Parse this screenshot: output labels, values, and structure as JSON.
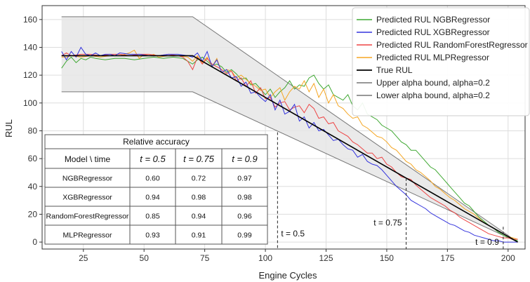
{
  "chart_data": {
    "type": "line",
    "xlabel": "Engine Cycles",
    "ylabel": "RUL",
    "xlim": [
      8,
      207
    ],
    "ylim": [
      -5,
      170
    ],
    "xticks": [
      25,
      50,
      75,
      100,
      125,
      150,
      175,
      200
    ],
    "yticks": [
      0,
      20,
      40,
      60,
      80,
      100,
      120,
      140,
      160
    ],
    "grid": true,
    "legend_position": "top-right",
    "series": [
      {
        "name": "Predicted RUL NGBRegressor",
        "color": "#3fa832",
        "x": [
          16,
          18,
          20,
          22,
          24,
          26,
          28,
          30,
          34,
          38,
          42,
          46,
          50,
          54,
          58,
          62,
          66,
          68,
          70,
          72,
          74,
          76,
          78,
          80,
          82,
          84,
          86,
          88,
          90,
          92,
          94,
          96,
          98,
          100,
          102,
          104,
          106,
          108,
          110,
          112,
          114,
          116,
          118,
          120,
          122,
          124,
          126,
          128,
          130,
          132,
          134,
          136,
          138,
          140,
          142,
          144,
          146,
          148,
          150,
          152,
          154,
          156,
          158,
          160,
          162,
          164,
          166,
          168,
          170,
          172,
          174,
          176,
          178,
          180,
          182,
          184,
          186,
          188,
          190,
          192,
          194,
          196,
          198,
          200,
          202,
          204
        ],
        "y": [
          125,
          130,
          133,
          129,
          132,
          131,
          133,
          132,
          131,
          132,
          132,
          131,
          132,
          133,
          132,
          133,
          132,
          130,
          128,
          131,
          133,
          130,
          127,
          128,
          126,
          122,
          124,
          121,
          117,
          118,
          113,
          114,
          110,
          106,
          110,
          104,
          108,
          111,
          116,
          110,
          113,
          112,
          118,
          120,
          114,
          110,
          113,
          106,
          104,
          102,
          106,
          98,
          95,
          100,
          92,
          90,
          88,
          84,
          82,
          80,
          76,
          72,
          70,
          66,
          66,
          62,
          58,
          54,
          52,
          48,
          44,
          40,
          36,
          32,
          28,
          26,
          22,
          18,
          15,
          12,
          10,
          7,
          5,
          3,
          2,
          1
        ]
      },
      {
        "name": "Predicted RUL XGBRegressor",
        "color": "#3333dd",
        "x": [
          16,
          18,
          20,
          22,
          24,
          26,
          28,
          30,
          32,
          34,
          36,
          38,
          40,
          44,
          48,
          52,
          56,
          60,
          64,
          68,
          70,
          72,
          74,
          76,
          78,
          80,
          82,
          84,
          86,
          88,
          90,
          92,
          94,
          96,
          98,
          100,
          102,
          104,
          106,
          108,
          110,
          112,
          114,
          116,
          118,
          120,
          122,
          124,
          126,
          128,
          130,
          132,
          134,
          136,
          138,
          140,
          142,
          144,
          146,
          148,
          150,
          152,
          154,
          156,
          158,
          160,
          162,
          164,
          166,
          168,
          170,
          172,
          174,
          176,
          178,
          180,
          182,
          184,
          186,
          188,
          190,
          192,
          194,
          196,
          198,
          200,
          202,
          204
        ],
        "y": [
          137,
          131,
          137,
          133,
          140,
          135,
          134,
          136,
          134,
          135,
          135,
          134,
          136,
          135,
          135,
          134,
          134,
          135,
          135,
          134,
          133,
          136,
          130,
          137,
          126,
          131,
          122,
          124,
          118,
          119,
          112,
          115,
          107,
          108,
          104,
          101,
          106,
          95,
          102,
          92,
          94,
          99,
          87,
          90,
          82,
          86,
          80,
          81,
          77,
          73,
          74,
          70,
          67,
          66,
          61,
          63,
          58,
          56,
          55,
          52,
          48,
          44,
          40,
          37,
          34,
          30,
          28,
          26,
          24,
          21,
          19,
          17,
          15,
          13,
          12,
          10,
          8,
          7,
          5,
          4,
          3,
          2,
          1,
          1,
          0,
          0,
          0,
          0
        ]
      },
      {
        "name": "Predicted RUL RandomForestRegressor",
        "color": "#ee4444",
        "x": [
          16,
          18,
          20,
          24,
          28,
          32,
          36,
          40,
          44,
          48,
          52,
          56,
          60,
          64,
          66,
          68,
          70,
          72,
          74,
          76,
          78,
          80,
          82,
          84,
          86,
          88,
          90,
          92,
          94,
          96,
          98,
          100,
          102,
          104,
          106,
          108,
          110,
          112,
          114,
          116,
          118,
          120,
          122,
          124,
          126,
          128,
          130,
          132,
          134,
          136,
          138,
          140,
          142,
          144,
          146,
          148,
          150,
          152,
          154,
          156,
          158,
          160,
          162,
          164,
          166,
          168,
          170,
          172,
          174,
          176,
          178,
          180,
          182,
          184,
          186,
          188,
          190,
          192,
          194,
          196,
          198,
          200,
          202,
          204
        ],
        "y": [
          134,
          136,
          134,
          135,
          135,
          134,
          135,
          135,
          134,
          135,
          135,
          134,
          135,
          134,
          133,
          130,
          124,
          133,
          128,
          132,
          128,
          126,
          124,
          121,
          123,
          116,
          118,
          112,
          116,
          107,
          111,
          103,
          104,
          97,
          100,
          101,
          95,
          97,
          98,
          93,
          99,
          96,
          89,
          90,
          85,
          86,
          80,
          78,
          76,
          72,
          70,
          67,
          64,
          64,
          60,
          61,
          56,
          54,
          50,
          47,
          46,
          45,
          41,
          38,
          35,
          32,
          30,
          28,
          26,
          23,
          21,
          18,
          16,
          14,
          12,
          10,
          8,
          6,
          5,
          4,
          3,
          3,
          2,
          2
        ]
      },
      {
        "name": "Predicted RUL MLPRegressor",
        "color": "#f5a623",
        "x": [
          16,
          18,
          20,
          24,
          28,
          32,
          36,
          40,
          44,
          46,
          48,
          50,
          52,
          54,
          56,
          60,
          64,
          68,
          70,
          72,
          74,
          76,
          78,
          80,
          82,
          84,
          86,
          88,
          90,
          92,
          94,
          96,
          98,
          100,
          102,
          104,
          106,
          108,
          110,
          112,
          114,
          116,
          118,
          120,
          122,
          124,
          126,
          128,
          130,
          132,
          134,
          136,
          138,
          140,
          142,
          144,
          146,
          148,
          150,
          152,
          154,
          156,
          158,
          160,
          162,
          164,
          166,
          168,
          170,
          172,
          174,
          176,
          178,
          180,
          182,
          184,
          186,
          188,
          190,
          192,
          194,
          196,
          198,
          200,
          202,
          204
        ],
        "y": [
          133,
          133,
          134,
          133,
          134,
          133,
          134,
          134,
          136,
          138,
          132,
          135,
          134,
          135,
          133,
          134,
          134,
          133,
          130,
          134,
          129,
          133,
          126,
          132,
          122,
          124,
          123,
          118,
          120,
          117,
          114,
          112,
          109,
          110,
          104,
          108,
          111,
          102,
          108,
          112,
          110,
          116,
          108,
          114,
          104,
          110,
          100,
          106,
          98,
          96,
          92,
          89,
          90,
          84,
          82,
          79,
          76,
          75,
          72,
          68,
          66,
          62,
          58,
          56,
          52,
          50,
          47,
          44,
          40,
          38,
          35,
          32,
          30,
          27,
          24,
          22,
          20,
          17,
          14,
          12,
          10,
          8,
          6,
          4,
          3,
          2
        ]
      },
      {
        "name": "True RUL",
        "color": "#000000",
        "x": [
          16,
          70,
          204
        ],
        "y": [
          134,
          134,
          0
        ]
      },
      {
        "name": "Upper alpha bound, alpha=0.2",
        "color": "#777777",
        "x": [
          16,
          70,
          204
        ],
        "y": [
          162,
          162,
          0
        ]
      },
      {
        "name": "Lower alpha bound, alpha=0.2",
        "color": "#777777",
        "x": [
          16,
          70,
          204
        ],
        "y": [
          108,
          108,
          0
        ]
      }
    ],
    "annotations": [
      {
        "text": "t = 0.5",
        "x": 105,
        "y": 4
      },
      {
        "text": "t = 0.75",
        "x": 158,
        "y": 12
      },
      {
        "text": "t = 0.9",
        "x": 198,
        "y": -2
      }
    ],
    "vertical_markers": [
      {
        "x": 105,
        "y_top": 79
      },
      {
        "x": 158,
        "y_top": 46
      },
      {
        "x": 198,
        "y_top": 11
      }
    ],
    "table": {
      "title": "Relative accuracy",
      "corner": "Model \\ time",
      "headers": [
        "t = 0.5",
        "t = 0.75",
        "t = 0.9"
      ],
      "rows": [
        {
          "model": "NGBRegressor",
          "values": [
            "0.60",
            "0.72",
            "0.97"
          ]
        },
        {
          "model": "XGBRegressor",
          "values": [
            "0.94",
            "0.98",
            "0.98"
          ]
        },
        {
          "model": "RandomForestRegressor",
          "values": [
            "0.85",
            "0.94",
            "0.96"
          ]
        },
        {
          "model": "MLPRegressor",
          "values": [
            "0.93",
            "0.91",
            "0.99"
          ]
        }
      ]
    }
  }
}
